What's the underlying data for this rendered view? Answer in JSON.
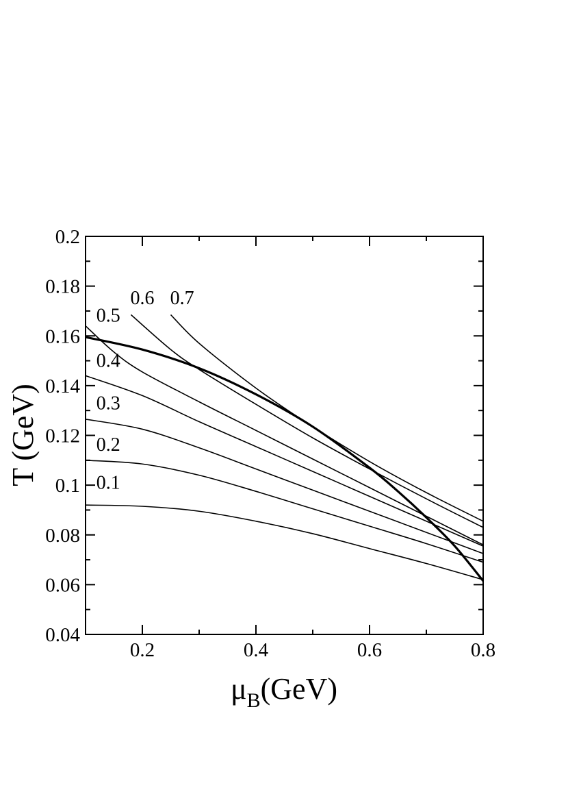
{
  "chart_data": {
    "type": "line",
    "xlabel_main": "μ",
    "xlabel_sub": "B",
    "xlabel_unit": "(GeV)",
    "ylabel": "T (GeV)",
    "xlim": [
      0.1,
      0.8
    ],
    "ylim": [
      0.04,
      0.2
    ],
    "xticks": [
      {
        "value": 0.2,
        "label": "0.2"
      },
      {
        "value": 0.4,
        "label": "0.4"
      },
      {
        "value": 0.6,
        "label": "0.6"
      },
      {
        "value": 0.8,
        "label": "0.8"
      }
    ],
    "xticks_minor": [
      0.1,
      0.3,
      0.5,
      0.7
    ],
    "yticks": [
      {
        "value": 0.04,
        "label": "0.04"
      },
      {
        "value": 0.06,
        "label": "0.06"
      },
      {
        "value": 0.08,
        "label": "0.08"
      },
      {
        "value": 0.1,
        "label": "0.1"
      },
      {
        "value": 0.12,
        "label": "0.12"
      },
      {
        "value": 0.14,
        "label": "0.14"
      },
      {
        "value": 0.16,
        "label": "0.16"
      },
      {
        "value": 0.18,
        "label": "0.18"
      },
      {
        "value": 0.2,
        "label": "0.2"
      }
    ],
    "yticks_minor": [
      0.05,
      0.07,
      0.09,
      0.11,
      0.13,
      0.15,
      0.17,
      0.19
    ],
    "grid": false,
    "series": [
      {
        "name": "0.1",
        "x": [
          0.1,
          0.2,
          0.3,
          0.4,
          0.5,
          0.6,
          0.7,
          0.8
        ],
        "y": [
          0.092,
          0.0915,
          0.0895,
          0.0855,
          0.0805,
          0.0745,
          0.0685,
          0.062
        ],
        "label_at": [
          0.14,
          0.0985
        ]
      },
      {
        "name": "0.2",
        "x": [
          0.1,
          0.2,
          0.3,
          0.4,
          0.5,
          0.6,
          0.7,
          0.8
        ],
        "y": [
          0.11,
          0.1085,
          0.104,
          0.0975,
          0.0905,
          0.0835,
          0.0765,
          0.069
        ],
        "label_at": [
          0.14,
          0.1138
        ]
      },
      {
        "name": "0.3",
        "x": [
          0.1,
          0.2,
          0.3,
          0.4,
          0.5,
          0.6,
          0.7,
          0.8
        ],
        "y": [
          0.1265,
          0.1225,
          0.115,
          0.1065,
          0.098,
          0.0895,
          0.081,
          0.0725
        ],
        "label_at": [
          0.14,
          0.1305
        ]
      },
      {
        "name": "0.4",
        "x": [
          0.1,
          0.2,
          0.3,
          0.4,
          0.5,
          0.6,
          0.7,
          0.8
        ],
        "y": [
          0.144,
          0.136,
          0.1255,
          0.1155,
          0.1055,
          0.0955,
          0.0855,
          0.0755
        ],
        "label_at": [
          0.14,
          0.1475
        ]
      },
      {
        "name": "0.5",
        "x": [
          0.1,
          0.15,
          0.2,
          0.3,
          0.4,
          0.5,
          0.6,
          0.7,
          0.8
        ],
        "y": [
          0.164,
          0.1535,
          0.1455,
          0.1335,
          0.122,
          0.1105,
          0.099,
          0.0875,
          0.076
        ],
        "label_at": [
          0.14,
          0.1657
        ]
      },
      {
        "name": "0.6",
        "x": [
          0.18,
          0.25,
          0.3,
          0.4,
          0.5,
          0.6,
          0.7,
          0.8
        ],
        "y": [
          0.1685,
          0.1545,
          0.1465,
          0.1325,
          0.119,
          0.1065,
          0.0945,
          0.083
        ],
        "label_at": [
          0.2,
          0.1728
        ]
      },
      {
        "name": "0.7",
        "x": [
          0.25,
          0.3,
          0.4,
          0.5,
          0.6,
          0.7,
          0.8
        ],
        "y": [
          0.1685,
          0.157,
          0.139,
          0.1235,
          0.1095,
          0.097,
          0.0855
        ],
        "label_at": [
          0.27,
          0.1728
        ]
      }
    ],
    "boundary": {
      "x": [
        0.1,
        0.2,
        0.3,
        0.4,
        0.5,
        0.6,
        0.65,
        0.7,
        0.75,
        0.8
      ],
      "y": [
        0.1595,
        0.1545,
        0.147,
        0.1365,
        0.1235,
        0.107,
        0.0975,
        0.087,
        0.0755,
        0.0615
      ]
    }
  }
}
